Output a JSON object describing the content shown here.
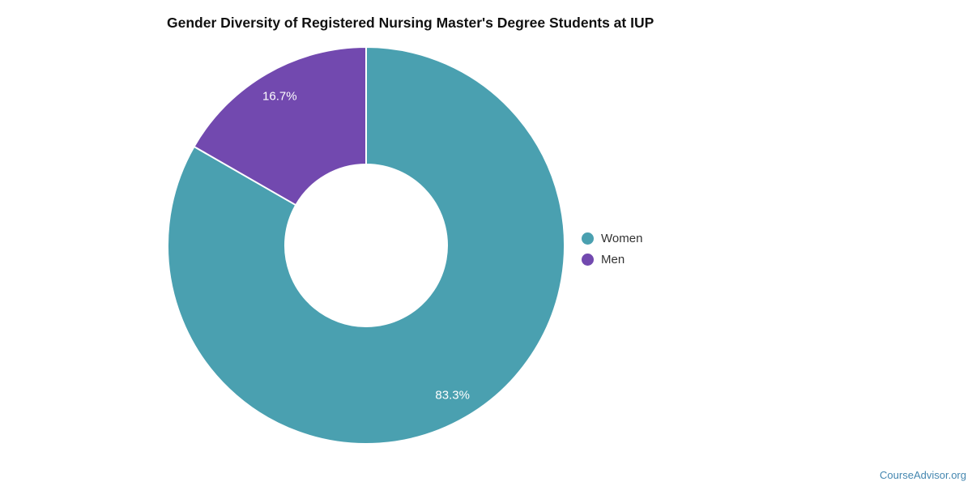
{
  "title": "Gender Diversity of Registered Nursing Master's Degree Students at IUP",
  "watermark": "CourseAdvisor.org",
  "watermark_color": "#4587b0",
  "chart_data": {
    "type": "pie",
    "donut": true,
    "title": "Gender Diversity of Registered Nursing Master's Degree Students at IUP",
    "start_angle_deg": 0,
    "direction": "clockwise",
    "inner_radius_ratio": 0.41,
    "legend_position": "right",
    "slices": [
      {
        "name": "Women",
        "value": 83.3,
        "label": "83.3%",
        "color": "#4aa0b0"
      },
      {
        "name": "Men",
        "value": 16.7,
        "label": "16.7%",
        "color": "#7249af"
      }
    ]
  }
}
